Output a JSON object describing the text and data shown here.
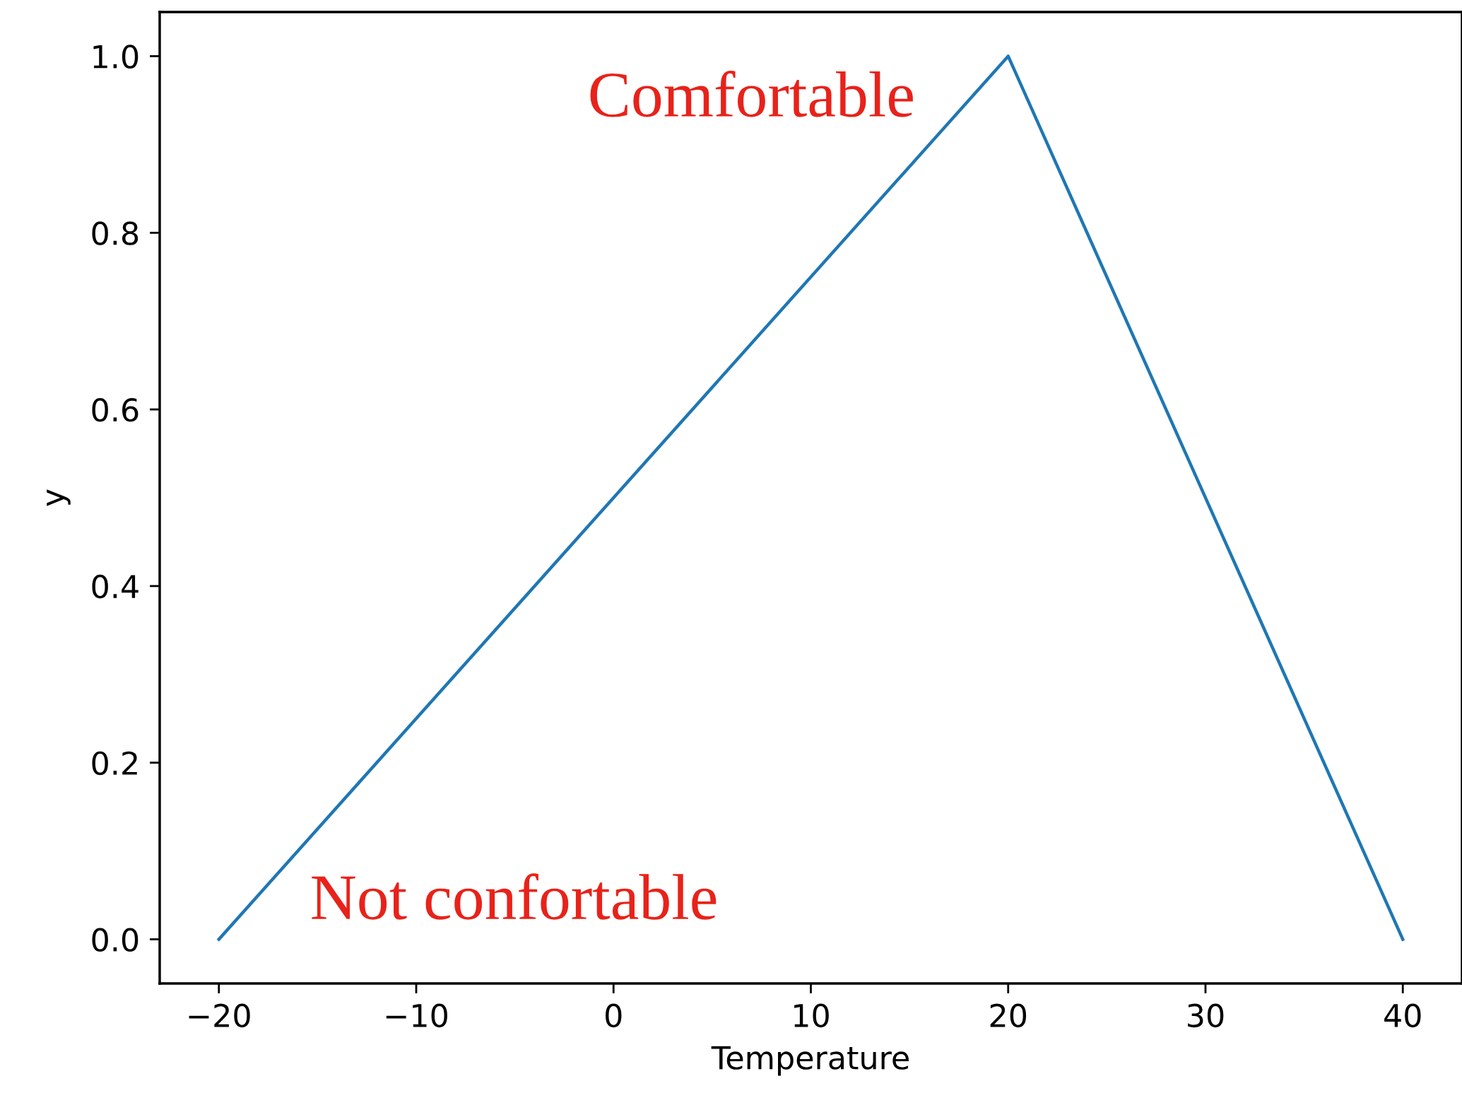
{
  "chart_data": {
    "type": "line",
    "xlabel": "Temperature",
    "ylabel": "y",
    "x": [
      -20,
      20,
      40
    ],
    "series": [
      {
        "color": "#1f77b4",
        "values": [
          0,
          1,
          0
        ]
      }
    ],
    "xlim": [
      -23,
      43
    ],
    "ylim": [
      -0.05,
      1.05
    ],
    "xticks": [
      {
        "value": -20,
        "label": "−20"
      },
      {
        "value": -10,
        "label": "−10"
      },
      0,
      10,
      20,
      30,
      40
    ],
    "yticks": [
      {
        "value": 0,
        "label": "0.0"
      },
      {
        "value": 0.2,
        "label": "0.2"
      },
      {
        "value": 0.4,
        "label": "0.4"
      },
      {
        "value": 0.6,
        "label": "0.6"
      },
      {
        "value": 0.8,
        "label": "0.8"
      },
      {
        "value": 1,
        "label": "1.0"
      }
    ],
    "grid": false,
    "legend": false,
    "marker": "none",
    "line_style": "solid",
    "annotations": [
      "Comfortable",
      "Not confortable"
    ]
  }
}
